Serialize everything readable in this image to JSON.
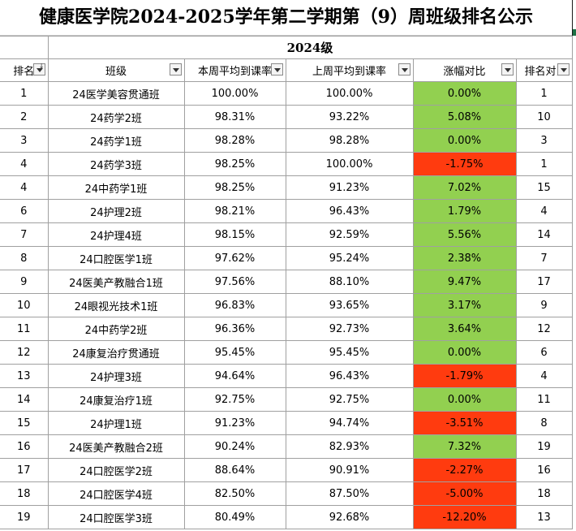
{
  "title": "健康医学院2024-2025学年第二学期第（9）周班级排名公示",
  "level": "2024级",
  "headers": [
    "排名",
    "班级",
    "本周平均到课率",
    "上周平均到课率",
    "涨幅对比",
    "排名对比"
  ],
  "colors": {
    "positive": "#92d050",
    "negative": "#ff3b0f"
  },
  "rows": [
    {
      "rank": "1",
      "class": "24医学美容贯通班",
      "this_week": "100.00%",
      "last_week": "100.00%",
      "change": "0.00%",
      "trend": "pos",
      "prev_rank": "1"
    },
    {
      "rank": "2",
      "class": "24药学2班",
      "this_week": "98.31%",
      "last_week": "93.22%",
      "change": "5.08%",
      "trend": "pos",
      "prev_rank": "10"
    },
    {
      "rank": "3",
      "class": "24药学1班",
      "this_week": "98.28%",
      "last_week": "98.28%",
      "change": "0.00%",
      "trend": "pos",
      "prev_rank": "3"
    },
    {
      "rank": "4",
      "class": "24药学3班",
      "this_week": "98.25%",
      "last_week": "100.00%",
      "change": "-1.75%",
      "trend": "neg",
      "prev_rank": "1"
    },
    {
      "rank": "4",
      "class": "24中药学1班",
      "this_week": "98.25%",
      "last_week": "91.23%",
      "change": "7.02%",
      "trend": "pos",
      "prev_rank": "15"
    },
    {
      "rank": "6",
      "class": "24护理2班",
      "this_week": "98.21%",
      "last_week": "96.43%",
      "change": "1.79%",
      "trend": "pos",
      "prev_rank": "4"
    },
    {
      "rank": "7",
      "class": "24护理4班",
      "this_week": "98.15%",
      "last_week": "92.59%",
      "change": "5.56%",
      "trend": "pos",
      "prev_rank": "14"
    },
    {
      "rank": "8",
      "class": "24口腔医学1班",
      "this_week": "97.62%",
      "last_week": "95.24%",
      "change": "2.38%",
      "trend": "pos",
      "prev_rank": "7"
    },
    {
      "rank": "9",
      "class": "24医美产教融合1班",
      "this_week": "97.56%",
      "last_week": "88.10%",
      "change": "9.47%",
      "trend": "pos",
      "prev_rank": "17"
    },
    {
      "rank": "10",
      "class": "24眼视光技术1班",
      "this_week": "96.83%",
      "last_week": "93.65%",
      "change": "3.17%",
      "trend": "pos",
      "prev_rank": "9"
    },
    {
      "rank": "11",
      "class": "24中药学2班",
      "this_week": "96.36%",
      "last_week": "92.73%",
      "change": "3.64%",
      "trend": "pos",
      "prev_rank": "12"
    },
    {
      "rank": "12",
      "class": "24康复治疗贯通班",
      "this_week": "95.45%",
      "last_week": "95.45%",
      "change": "0.00%",
      "trend": "pos",
      "prev_rank": "6"
    },
    {
      "rank": "13",
      "class": "24护理3班",
      "this_week": "94.64%",
      "last_week": "96.43%",
      "change": "-1.79%",
      "trend": "neg",
      "prev_rank": "4"
    },
    {
      "rank": "14",
      "class": "24康复治疗1班",
      "this_week": "92.75%",
      "last_week": "92.75%",
      "change": "0.00%",
      "trend": "pos",
      "prev_rank": "11"
    },
    {
      "rank": "15",
      "class": "24护理1班",
      "this_week": "91.23%",
      "last_week": "94.74%",
      "change": "-3.51%",
      "trend": "neg",
      "prev_rank": "8"
    },
    {
      "rank": "16",
      "class": "24医美产教融合2班",
      "this_week": "90.24%",
      "last_week": "82.93%",
      "change": "7.32%",
      "trend": "pos",
      "prev_rank": "19"
    },
    {
      "rank": "17",
      "class": "24口腔医学2班",
      "this_week": "88.64%",
      "last_week": "90.91%",
      "change": "-2.27%",
      "trend": "neg",
      "prev_rank": "16"
    },
    {
      "rank": "18",
      "class": "24口腔医学4班",
      "this_week": "82.50%",
      "last_week": "87.50%",
      "change": "-5.00%",
      "trend": "neg",
      "prev_rank": "18"
    },
    {
      "rank": "19",
      "class": "24口腔医学3班",
      "this_week": "80.49%",
      "last_week": "92.68%",
      "change": "-12.20%",
      "trend": "neg",
      "prev_rank": "13"
    }
  ]
}
